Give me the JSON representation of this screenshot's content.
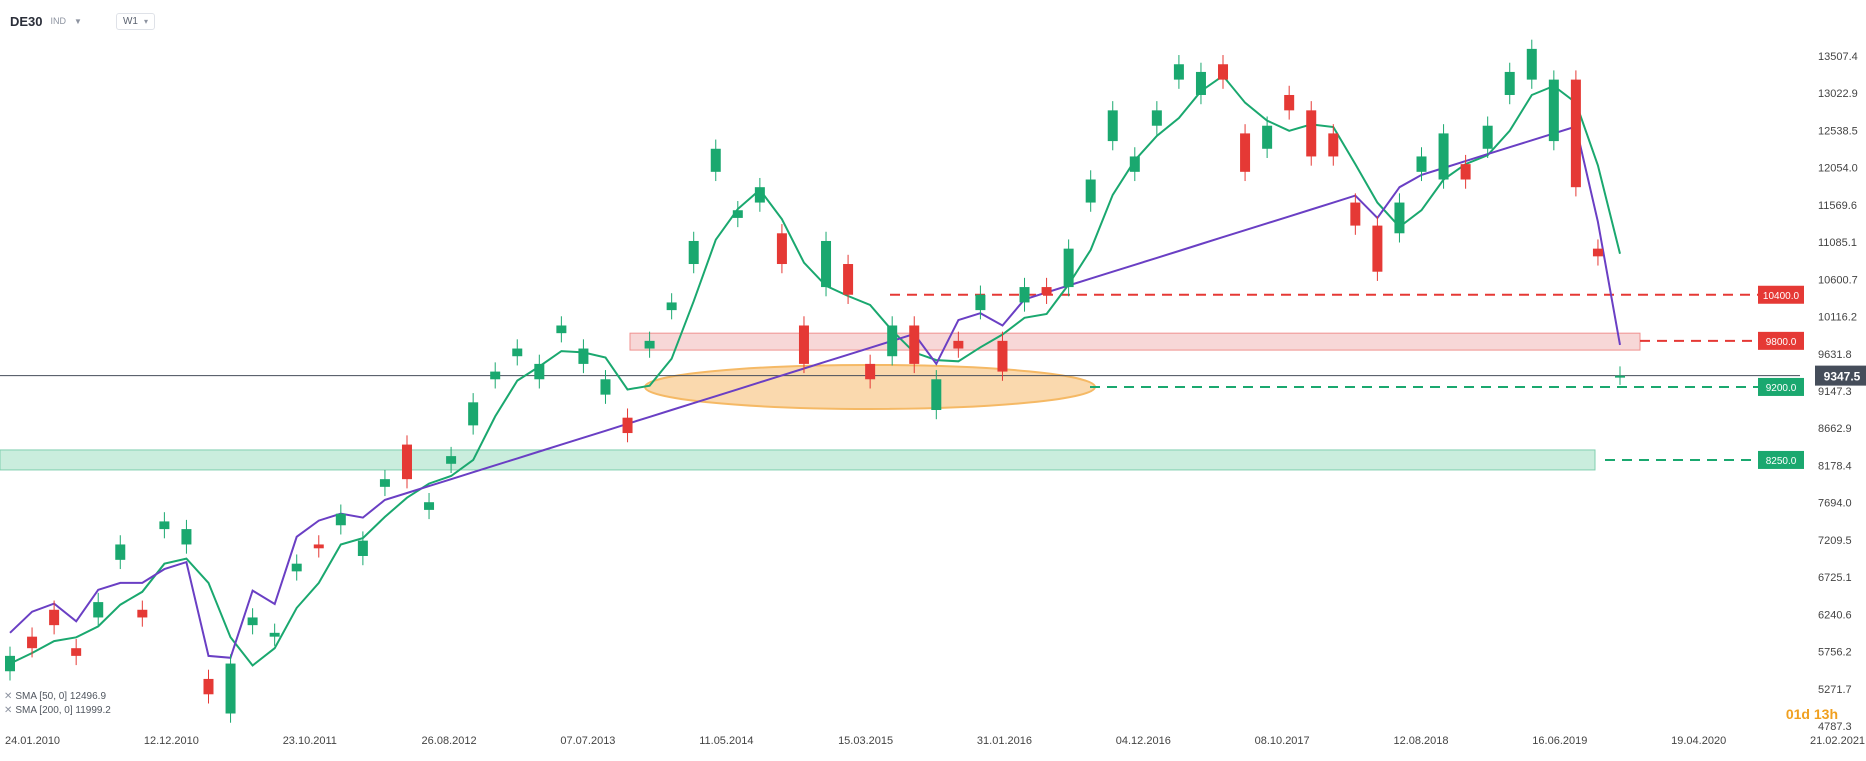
{
  "header": {
    "symbol": "DE30",
    "type_label": "IND",
    "timeframe": "W1"
  },
  "legend": [
    {
      "label": "SMA [50, 0] 12496.9"
    },
    {
      "label": "SMA [200, 0] 11999.2"
    }
  ],
  "countdown": "01d 13h",
  "chart_data": {
    "type": "candlestick",
    "instrument": "DE30",
    "timeframe": "W1",
    "x_tick_labels": [
      "24.01.2010",
      "12.12.2010",
      "23.10.2011",
      "26.08.2012",
      "07.07.2013",
      "11.05.2014",
      "15.03.2015",
      "31.01.2016",
      "04.12.2016",
      "08.10.2017",
      "12.08.2018",
      "16.06.2019",
      "19.04.2020",
      "21.02.2021"
    ],
    "y_tick_labels": [
      13507.4,
      13022.9,
      12538.5,
      12054.0,
      11569.6,
      11085.1,
      10600.7,
      10116.2,
      9631.8,
      9147.3,
      8662.9,
      8178.4,
      7694.0,
      7209.5,
      6725.1,
      6240.6,
      5756.2,
      5271.7,
      4787.3
    ],
    "ylim": [
      4787.3,
      13980
    ],
    "price_path": [
      [
        5500,
        5700
      ],
      [
        5950,
        5800
      ],
      [
        6300,
        6100
      ],
      [
        5800,
        5700
      ],
      [
        6200,
        6400
      ],
      [
        6950,
        7150
      ],
      [
        6300,
        6200
      ],
      [
        7350,
        7450
      ],
      [
        7150,
        7350
      ],
      [
        5400,
        5200
      ],
      [
        4950,
        5600
      ],
      [
        6100,
        6200
      ],
      [
        5950,
        6000
      ],
      [
        6800,
        6900
      ],
      [
        7150,
        7100
      ],
      [
        7400,
        7550
      ],
      [
        7000,
        7200
      ],
      [
        7900,
        8000
      ],
      [
        8450,
        8000
      ],
      [
        7600,
        7700
      ],
      [
        8200,
        8300
      ],
      [
        8700,
        9000
      ],
      [
        9300,
        9400
      ],
      [
        9600,
        9700
      ],
      [
        9300,
        9500
      ],
      [
        9900,
        10000
      ],
      [
        9500,
        9700
      ],
      [
        9100,
        9300
      ],
      [
        8800,
        8600
      ],
      [
        9700,
        9800
      ],
      [
        10200,
        10300
      ],
      [
        10800,
        11100
      ],
      [
        12000,
        12300
      ],
      [
        11400,
        11500
      ],
      [
        11600,
        11800
      ],
      [
        11200,
        10800
      ],
      [
        10000,
        9500
      ],
      [
        10500,
        11100
      ],
      [
        10800,
        10400
      ],
      [
        9500,
        9300
      ],
      [
        9600,
        10000
      ],
      [
        10000,
        9500
      ],
      [
        8900,
        9300
      ],
      [
        9800,
        9700
      ],
      [
        10200,
        10400
      ],
      [
        9800,
        9400
      ],
      [
        10300,
        10500
      ],
      [
        10500,
        10400
      ],
      [
        10500,
        11000
      ],
      [
        11600,
        11900
      ],
      [
        12400,
        12800
      ],
      [
        12000,
        12200
      ],
      [
        12600,
        12800
      ],
      [
        13200,
        13400
      ],
      [
        13000,
        13300
      ],
      [
        13400,
        13200
      ],
      [
        12500,
        12000
      ],
      [
        12300,
        12600
      ],
      [
        13000,
        12800
      ],
      [
        12800,
        12200
      ],
      [
        12500,
        12200
      ],
      [
        11600,
        11300
      ],
      [
        11300,
        10700
      ],
      [
        11200,
        11600
      ],
      [
        12000,
        12200
      ],
      [
        11900,
        12500
      ],
      [
        12100,
        11900
      ],
      [
        12300,
        12600
      ],
      [
        13000,
        13300
      ],
      [
        13200,
        13600
      ],
      [
        12400,
        13200
      ],
      [
        13200,
        11800
      ],
      [
        11000,
        10900
      ],
      [
        9347.5,
        9347.5
      ]
    ],
    "last_price": 9347.5,
    "sma50": {
      "label": "SMA [50, 0] 12496.9",
      "value": 12496.9,
      "color": "#1aa86f"
    },
    "sma200": {
      "label": "SMA [200, 0] 11999.2",
      "value": 11999.2,
      "color": "#6a3fc4"
    },
    "levels": [
      {
        "label": "10400.0",
        "value": 10400.0,
        "color": "#e53935"
      },
      {
        "label": "9800.0",
        "value": 9800.0,
        "color": "#e53935"
      },
      {
        "label": "9200.0",
        "value": 9200.0,
        "color": "#1aa86f"
      },
      {
        "label": "8250.0",
        "value": 8250.0,
        "color": "#1aa86f"
      }
    ],
    "zones": [
      {
        "low": 9680,
        "high": 9900,
        "color": "#f2b8b8"
      },
      {
        "low": 8120,
        "high": 8380,
        "color": "#9fe0c2"
      }
    ],
    "colors": {
      "up": "#1aa86f",
      "down": "#e53935",
      "last_price_bg": "#454d5a",
      "oval": "#f7c07a"
    }
  }
}
